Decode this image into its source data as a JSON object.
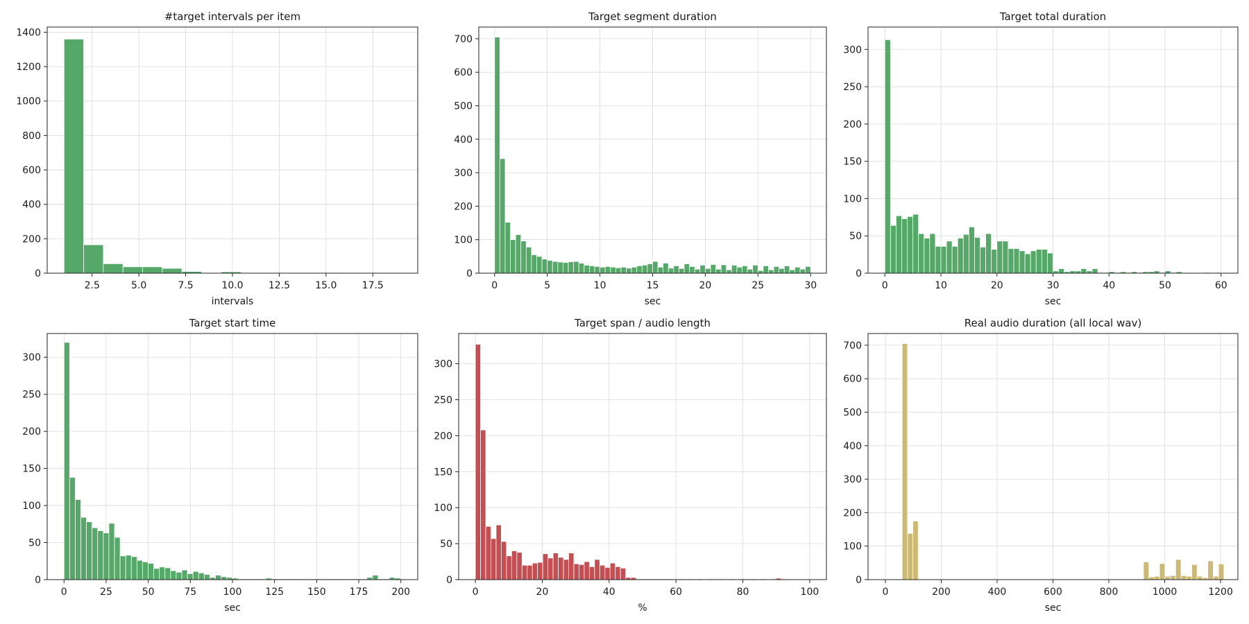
{
  "chart_data": [
    {
      "id": "intervals",
      "type": "bar",
      "title": "#target intervals per item",
      "xlabel": "intervals",
      "xlim": [
        0.1,
        19.9
      ],
      "ylim": [
        0,
        1430
      ],
      "xticks": [
        2.5,
        5.0,
        7.5,
        10.0,
        12.5,
        15.0,
        17.5
      ],
      "yticks": [
        0,
        200,
        400,
        600,
        800,
        1000,
        1200,
        1400
      ],
      "bin_start": 1.0,
      "bin_width": 1.05,
      "values": [
        1360,
        165,
        55,
        37,
        37,
        28,
        10,
        2,
        8,
        2,
        0,
        0,
        0,
        0,
        0,
        0,
        0
      ],
      "color": "#55a868"
    },
    {
      "id": "segment-duration",
      "type": "bar",
      "title": "Target segment duration",
      "xlabel": "sec",
      "xlim": [
        -1.5,
        31.5
      ],
      "ylim": [
        0,
        735
      ],
      "xticks": [
        0,
        5,
        10,
        15,
        20,
        25,
        30
      ],
      "yticks": [
        0,
        100,
        200,
        300,
        400,
        500,
        600,
        700
      ],
      "bin_start": 0,
      "bin_width": 0.5,
      "values": [
        705,
        342,
        152,
        100,
        115,
        96,
        78,
        55,
        50,
        42,
        38,
        35,
        33,
        32,
        34,
        35,
        30,
        24,
        22,
        20,
        18,
        20,
        18,
        16,
        18,
        15,
        18,
        22,
        24,
        28,
        35,
        18,
        30,
        15,
        22,
        14,
        28,
        20,
        12,
        24,
        14,
        26,
        12,
        25,
        10,
        24,
        18,
        22,
        12,
        24,
        8,
        22,
        10,
        20,
        14,
        22,
        10,
        18,
        12,
        20
      ],
      "color": "#55a868"
    },
    {
      "id": "total-duration",
      "type": "bar",
      "title": "Target total duration",
      "xlabel": "sec",
      "xlim": [
        -3,
        63
      ],
      "ylim": [
        0,
        330
      ],
      "xticks": [
        0,
        10,
        20,
        30,
        40,
        50,
        60
      ],
      "yticks": [
        0,
        50,
        100,
        150,
        200,
        250,
        300
      ],
      "bin_start": 0,
      "bin_width": 1.0,
      "values": [
        313,
        64,
        77,
        73,
        76,
        79,
        53,
        47,
        53,
        36,
        36,
        43,
        36,
        47,
        52,
        62,
        48,
        35,
        53,
        32,
        43,
        43,
        33,
        33,
        30,
        26,
        30,
        32,
        32,
        27,
        3,
        6,
        2,
        3,
        3,
        6,
        3,
        6,
        1,
        1,
        2,
        1,
        2,
        1,
        2,
        1,
        2,
        2,
        3,
        1,
        3,
        1,
        2,
        0,
        0,
        0,
        0,
        1,
        0,
        1
      ],
      "color": "#55a868"
    },
    {
      "id": "start-time",
      "type": "bar",
      "title": "Target start time",
      "xlabel": "sec",
      "xlim": [
        -10,
        210
      ],
      "ylim": [
        0,
        332
      ],
      "xticks": [
        0,
        25,
        50,
        75,
        100,
        125,
        150,
        175,
        200
      ],
      "yticks": [
        0,
        50,
        100,
        150,
        200,
        250,
        300
      ],
      "bin_start": 0,
      "bin_width": 3.33,
      "values": [
        320,
        138,
        108,
        84,
        78,
        70,
        66,
        63,
        76,
        57,
        32,
        33,
        31,
        26,
        24,
        22,
        15,
        17,
        16,
        12,
        10,
        13,
        8,
        11,
        9,
        7,
        3,
        6,
        4,
        3,
        2,
        1,
        1,
        1,
        1,
        1,
        2,
        1,
        1,
        1,
        1,
        1,
        1,
        1,
        1,
        1,
        1,
        1,
        1,
        1,
        1,
        1,
        1,
        1,
        3,
        6,
        1,
        1,
        3,
        2
      ],
      "color": "#55a868"
    },
    {
      "id": "span-ratio",
      "type": "bar",
      "title": "Target span / audio length",
      "xlabel": "%",
      "xlim": [
        -5,
        105
      ],
      "ylim": [
        0,
        342
      ],
      "xticks": [
        0,
        20,
        40,
        60,
        80,
        100
      ],
      "yticks": [
        0,
        50,
        100,
        150,
        200,
        250,
        300
      ],
      "bin_start": 0,
      "bin_width": 1.55,
      "values": [
        327,
        208,
        74,
        57,
        76,
        53,
        33,
        40,
        38,
        20,
        20,
        23,
        24,
        36,
        30,
        37,
        31,
        28,
        37,
        22,
        21,
        25,
        18,
        28,
        20,
        17,
        23,
        18,
        16,
        3,
        3,
        1,
        1,
        1,
        1,
        1,
        1,
        1,
        0,
        1,
        0,
        1,
        0,
        1,
        0,
        1,
        0,
        1,
        0,
        1,
        0,
        1,
        0,
        1,
        0,
        1,
        0,
        1,
        2,
        1
      ],
      "color": "#c44e52"
    },
    {
      "id": "audio-duration",
      "type": "bar",
      "title": "Real audio duration (all local wav)",
      "xlabel": "sec",
      "xlim": [
        -62,
        1262
      ],
      "ylim": [
        0,
        735
      ],
      "xticks": [
        0,
        200,
        400,
        600,
        800,
        1000,
        1200
      ],
      "yticks": [
        0,
        100,
        200,
        300,
        400,
        500,
        600,
        700
      ],
      "bin_start": 60,
      "bin_width": 19.2,
      "values": [
        705,
        138,
        175,
        0,
        0,
        0,
        0,
        0,
        0,
        0,
        0,
        0,
        0,
        0,
        0,
        0,
        0,
        0,
        0,
        0,
        0,
        0,
        0,
        0,
        0,
        0,
        0,
        0,
        0,
        0,
        0,
        0,
        0,
        0,
        0,
        0,
        0,
        0,
        0,
        0,
        0,
        0,
        0,
        0,
        0,
        53,
        8,
        10,
        48,
        10,
        12,
        60,
        12,
        10,
        45,
        10,
        6,
        56,
        10,
        47
      ],
      "color": "#ccb974"
    }
  ]
}
